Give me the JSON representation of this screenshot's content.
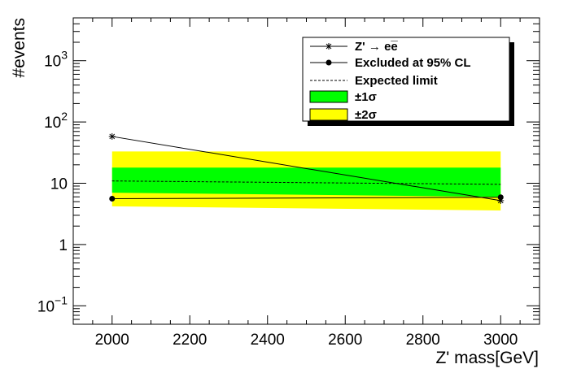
{
  "chart_data": {
    "type": "line",
    "title": "",
    "xlabel": "Z' mass[GeV]",
    "ylabel": "#events",
    "xlim": [
      1900,
      3100
    ],
    "ylim": [
      0.05,
      5000
    ],
    "yscale": "log",
    "grid": false,
    "legend_position": "top-right",
    "x_ticks": [
      2000,
      2200,
      2400,
      2600,
      2800,
      3000
    ],
    "x_tick_labels": [
      "2000",
      "2200",
      "2400",
      "2600",
      "2800",
      "3000"
    ],
    "y_ticks": [
      0.1,
      1,
      10,
      100,
      1000
    ],
    "y_tick_labels": [
      {
        "base": "10",
        "exp": "−1"
      },
      {
        "base": "1",
        "exp": ""
      },
      {
        "base": "10",
        "exp": ""
      },
      {
        "base": "10",
        "exp": "2"
      },
      {
        "base": "10",
        "exp": "3"
      }
    ],
    "x": [
      2000,
      3000
    ],
    "signal": {
      "name": "Z' → ee̅",
      "values": [
        58,
        5.2
      ],
      "color": "#000000"
    },
    "observed": {
      "name": "Excluded at 95% CL",
      "values": [
        5.6,
        5.9
      ],
      "color": "#000000"
    },
    "expected": {
      "name": "Expected limit",
      "values": [
        10.9,
        9.6
      ],
      "color": "#000000"
    },
    "band_1sigma": {
      "name": "±1σ",
      "lower": [
        7.0,
        6.0
      ],
      "upper": [
        18.0,
        18.0
      ],
      "color": "#00ff00"
    },
    "band_2sigma": {
      "name": "±2σ",
      "lower": [
        4.2,
        3.6
      ],
      "upper": [
        33.0,
        33.0
      ],
      "color": "#ffff00"
    }
  }
}
